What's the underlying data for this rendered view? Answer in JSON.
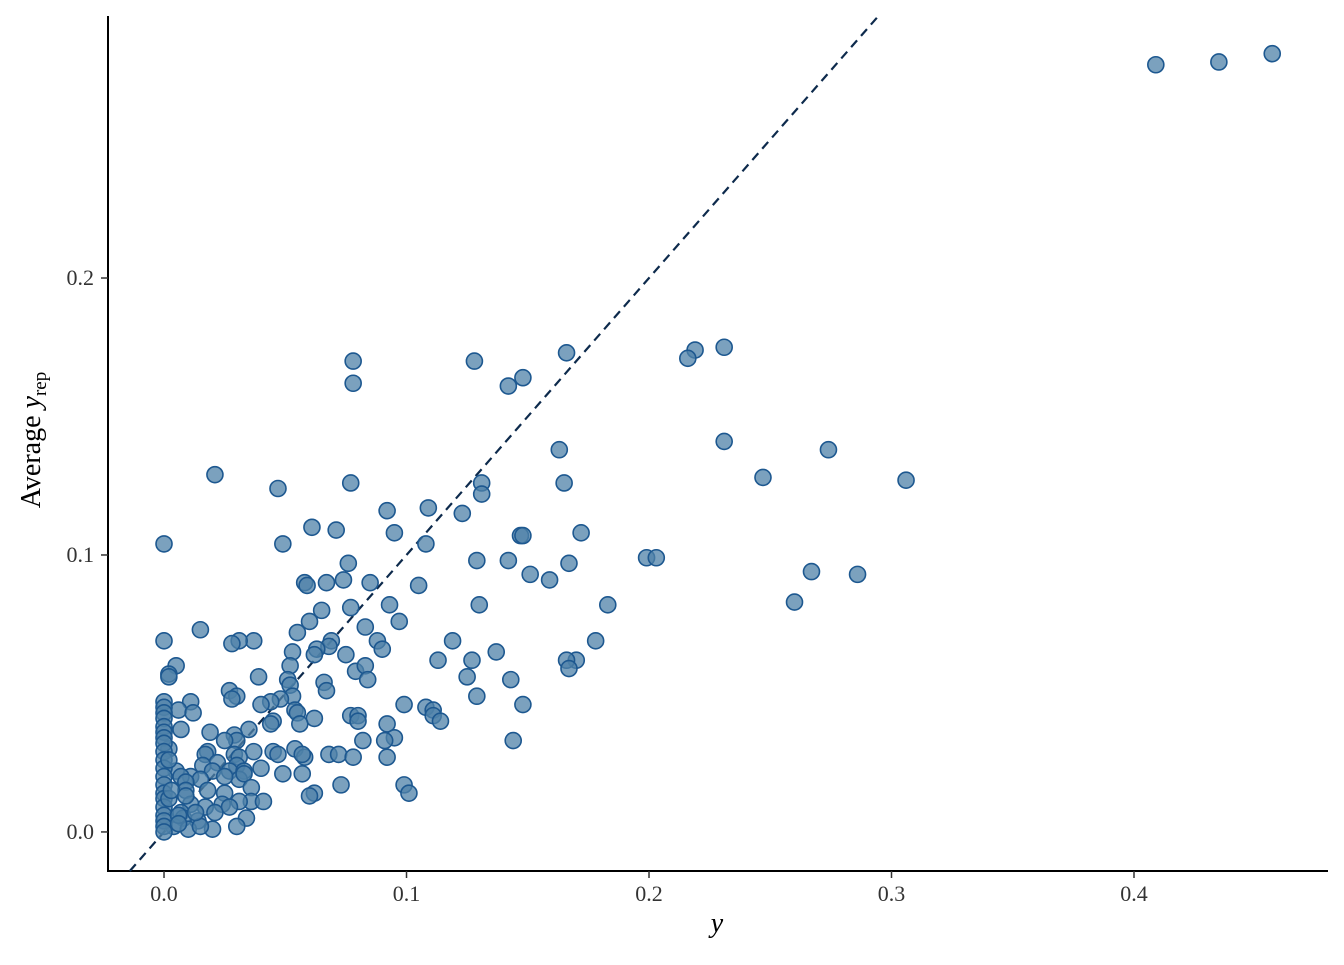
{
  "chart_data": {
    "type": "scatter",
    "x_label": "y",
    "y_label": {
      "text": "Average",
      "var": "y",
      "sub": "rep"
    },
    "series": [
      {
        "fill": "#4f82a8",
        "stroke": "#1d5890",
        "opacity": 0.75,
        "x": [
          0.409,
          0.435,
          0.457,
          0.231,
          0.219,
          0.216,
          0.166,
          0.128,
          0.078,
          0.078,
          0.148,
          0.142,
          0.231,
          0.274,
          0.163,
          0.247,
          0.306,
          0.165,
          0.131,
          0.131,
          0.077,
          0.021,
          0.047,
          0.092,
          0.109,
          0.123,
          0.061,
          0.071,
          0.095,
          0.172,
          0.147,
          0.148,
          0.049,
          0.108,
          0.0,
          0.199,
          0.203,
          0.129,
          0.142,
          0.167,
          0.076,
          0.267,
          0.286,
          0.151,
          0.159,
          0.074,
          0.058,
          0.067,
          0.085,
          0.105,
          0.059,
          0.26,
          0.183,
          0.13,
          0.077,
          0.065,
          0.093,
          0.097,
          0.06,
          0.083,
          0.015,
          0.055,
          0.069,
          0.037,
          0.031,
          0.028,
          0.0,
          0.119,
          0.178,
          0.088,
          0.068,
          0.09,
          0.063,
          0.137,
          0.075,
          0.053,
          0.062,
          0.17,
          0.166,
          0.113,
          0.127,
          0.005,
          0.052,
          0.002,
          0.167,
          0.079,
          0.083,
          0.002,
          0.039,
          0.125,
          0.143,
          0.084,
          0.051,
          0.052,
          0.066,
          0.067,
          0.027,
          0.03,
          0.028,
          0.053,
          0.129,
          0.048,
          0.044,
          0.011,
          0.099,
          0.04,
          0.108,
          0.148,
          0.111,
          0.006,
          0.054,
          0.012,
          0.055,
          0.111,
          0.077,
          0.08,
          0.114,
          0.062,
          0.045,
          0.044,
          0.056,
          0.08,
          0.007,
          0.019,
          0.035,
          0.092,
          0.029,
          0.03,
          0.025,
          0.082,
          0.095,
          0.091,
          0.144,
          0.002,
          0.054,
          0.018,
          0.017,
          0.045,
          0.037,
          0.047,
          0.029,
          0.031,
          0.058,
          0.068,
          0.072,
          0.078,
          0.092,
          0.057,
          0.022,
          0.03,
          0.016,
          0.04,
          0.02,
          0.027,
          0.033,
          0.005,
          0.049,
          0.057,
          0.011,
          0.007,
          0.031,
          0.025,
          0.015,
          0.009,
          0.033,
          0.036,
          0.073,
          0.099,
          0.025,
          0.018,
          0.009,
          0.062,
          0.06,
          0.101,
          0.036,
          0.041,
          0.031,
          0.024,
          0.017,
          0.011,
          0.027,
          0.007,
          0.021,
          0.034,
          0.014,
          0.008,
          0.03,
          0.02,
          0.004,
          0.01,
          0.015,
          0.0,
          0.0,
          0.0,
          0.0,
          0.0,
          0.0,
          0.0,
          0.0,
          0.0,
          0.0,
          0.0,
          0.0,
          0.0,
          0.0,
          0.0,
          0.0,
          0.0,
          0.0,
          0.0,
          0.0,
          0.002,
          0.006,
          0.003,
          0.002,
          0.009,
          0.013,
          0.006
        ],
        "y": [
          0.277,
          0.278,
          0.281,
          0.175,
          0.174,
          0.171,
          0.173,
          0.17,
          0.17,
          0.162,
          0.164,
          0.161,
          0.141,
          0.138,
          0.138,
          0.128,
          0.127,
          0.126,
          0.126,
          0.122,
          0.126,
          0.129,
          0.124,
          0.116,
          0.117,
          0.115,
          0.11,
          0.109,
          0.108,
          0.108,
          0.107,
          0.107,
          0.104,
          0.104,
          0.104,
          0.099,
          0.099,
          0.098,
          0.098,
          0.097,
          0.097,
          0.094,
          0.093,
          0.093,
          0.091,
          0.091,
          0.09,
          0.09,
          0.09,
          0.089,
          0.089,
          0.083,
          0.082,
          0.082,
          0.081,
          0.08,
          0.082,
          0.076,
          0.076,
          0.074,
          0.073,
          0.072,
          0.069,
          0.069,
          0.069,
          0.068,
          0.069,
          0.069,
          0.069,
          0.069,
          0.067,
          0.066,
          0.066,
          0.065,
          0.064,
          0.065,
          0.064,
          0.062,
          0.062,
          0.062,
          0.062,
          0.06,
          0.06,
          0.057,
          0.059,
          0.058,
          0.06,
          0.056,
          0.056,
          0.056,
          0.055,
          0.055,
          0.055,
          0.053,
          0.054,
          0.051,
          0.051,
          0.049,
          0.048,
          0.049,
          0.049,
          0.048,
          0.047,
          0.047,
          0.046,
          0.046,
          0.045,
          0.046,
          0.044,
          0.044,
          0.044,
          0.043,
          0.043,
          0.042,
          0.042,
          0.042,
          0.04,
          0.041,
          0.04,
          0.039,
          0.039,
          0.04,
          0.037,
          0.036,
          0.037,
          0.039,
          0.035,
          0.033,
          0.033,
          0.033,
          0.034,
          0.033,
          0.033,
          0.03,
          0.03,
          0.029,
          0.028,
          0.029,
          0.029,
          0.028,
          0.028,
          0.027,
          0.027,
          0.028,
          0.028,
          0.027,
          0.027,
          0.028,
          0.025,
          0.024,
          0.024,
          0.023,
          0.022,
          0.022,
          0.022,
          0.022,
          0.021,
          0.021,
          0.02,
          0.02,
          0.019,
          0.02,
          0.019,
          0.018,
          0.021,
          0.016,
          0.017,
          0.017,
          0.014,
          0.015,
          0.015,
          0.014,
          0.013,
          0.014,
          0.011,
          0.011,
          0.011,
          0.01,
          0.009,
          0.01,
          0.009,
          0.007,
          0.007,
          0.005,
          0.004,
          0.005,
          0.002,
          0.001,
          0.002,
          0.001,
          0.002,
          0.047,
          0.045,
          0.043,
          0.041,
          0.038,
          0.036,
          0.034,
          0.032,
          0.029,
          0.026,
          0.023,
          0.02,
          0.017,
          0.014,
          0.012,
          0.009,
          0.006,
          0.004,
          0.002,
          0.0,
          0.012,
          0.006,
          0.015,
          0.026,
          0.013,
          0.007,
          0.003
        ]
      }
    ],
    "xlim": [
      -0.0231,
      0.48
    ],
    "ylim": [
      -0.0141,
      0.2946
    ],
    "xticks": [
      {
        "value": 0,
        "label": "0.0"
      },
      0.1,
      0.2,
      0.3,
      0.4
    ],
    "yticks": [
      {
        "value": 0,
        "label": "0.0"
      },
      0.1,
      0.2
    ],
    "diagonal_color": "#0d2a4c"
  }
}
